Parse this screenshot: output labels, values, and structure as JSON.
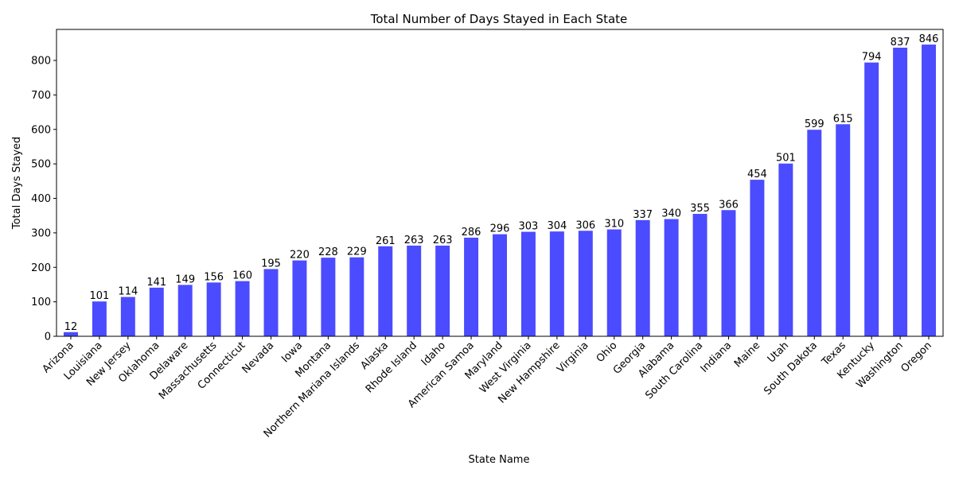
{
  "chart_data": {
    "type": "bar",
    "title": "Total Number of Days Stayed in Each State",
    "xlabel": "State Name",
    "ylabel": "Total Days Stayed",
    "ylim": [
      0,
      890
    ],
    "yticks": [
      0,
      100,
      200,
      300,
      400,
      500,
      600,
      700,
      800
    ],
    "grid": false,
    "bar_color": "#4b4bff",
    "categories": [
      "Arizona",
      "Louisiana",
      "New Jersey",
      "Oklahoma",
      "Delaware",
      "Massachusetts",
      "Connecticut",
      "Nevada",
      "Iowa",
      "Montana",
      "Northern Mariana Islands",
      "Alaska",
      "Rhode Island",
      "Idaho",
      "American Samoa",
      "Maryland",
      "West Virginia",
      "New Hampshire",
      "Virginia",
      "Ohio",
      "Georgia",
      "Alabama",
      "South Carolina",
      "Indiana",
      "Maine",
      "Utah",
      "South Dakota",
      "Texas",
      "Kentucky",
      "Washington",
      "Oregon"
    ],
    "values": [
      12,
      101,
      114,
      141,
      149,
      156,
      160,
      195,
      220,
      228,
      229,
      261,
      263,
      263,
      286,
      296,
      303,
      304,
      306,
      310,
      337,
      340,
      355,
      366,
      454,
      501,
      599,
      615,
      794,
      837,
      846
    ]
  }
}
